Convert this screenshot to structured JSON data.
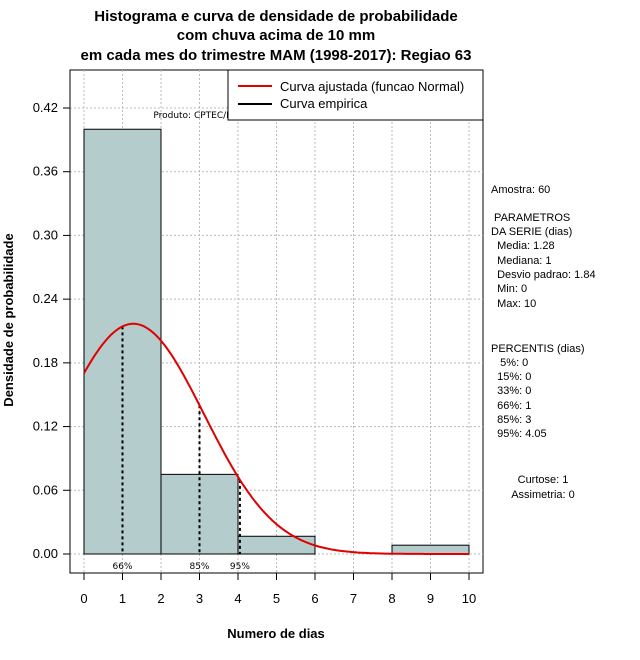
{
  "chart_data": {
    "type": "bar",
    "title_lines": [
      "Histograma e curva de densidade de probabilidade",
      "com chuva acima de 10 mm",
      "em cada mes do trimestre MAM (1998-2017): Regiao 63"
    ],
    "xlabel": "Numero de dias",
    "ylabel": "Densidade de probabilidade",
    "xlim": [
      0,
      10
    ],
    "ylim": [
      0,
      0.42
    ],
    "xticks": [
      "0",
      "1",
      "2",
      "3",
      "4",
      "5",
      "6",
      "7",
      "8",
      "9",
      "10"
    ],
    "yticks": [
      "0.00",
      "0.06",
      "0.12",
      "0.18",
      "0.24",
      "0.30",
      "0.36",
      "0.42"
    ],
    "bins": [
      {
        "from": 0,
        "to": 2,
        "density": 0.4
      },
      {
        "from": 2,
        "to": 4,
        "density": 0.075
      },
      {
        "from": 4,
        "to": 6,
        "density": 0.0167
      },
      {
        "from": 6,
        "to": 8,
        "density": 0.0
      },
      {
        "from": 8,
        "to": 10,
        "density": 0.0083
      }
    ],
    "normal_curve": {
      "mean": 1.28,
      "sd": 1.84,
      "from": 0,
      "to": 10
    },
    "percentile_lines": [
      {
        "x": 1,
        "label": "66%"
      },
      {
        "x": 3,
        "label": "85%"
      },
      {
        "x": 4.05,
        "label": "95%"
      }
    ],
    "legend": [
      {
        "label": "Curva ajustada (funcao Normal)",
        "color": "#e00000"
      },
      {
        "label": "Curva empirica",
        "color": "#000000"
      }
    ],
    "bar_color": "#b4cccc",
    "curve_color": "#e00000",
    "product_label": "Produto: CPTEC/INPE"
  },
  "stats": {
    "lines": [
      "Amostra: 60",
      " PARAMETROS",
      "DA SERIE (dias)",
      "  Media: 1.28",
      "  Mediana: 1",
      "  Desvio padrao: 1.84",
      "  Min: 0",
      "  Max: 10",
      "PERCENTIS (dias)",
      "   5%: 0",
      "  15%: 0",
      "  33%: 0",
      "  66%: 1",
      "  85%: 3",
      "  95%: 4.05",
      "Curtose: 1",
      "Assimetria: 0"
    ]
  }
}
